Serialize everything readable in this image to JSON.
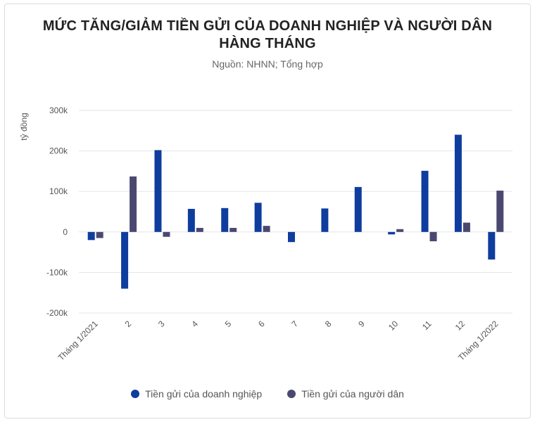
{
  "title_line1": "MỨC TĂNG/GIẢM TIỀN GỬI CỦA DOANH NGHIỆP VÀ NGƯỜI DÂN",
  "title_line2": "HÀNG THÁNG",
  "subtitle": "Nguồn: NHNN; Tổng hợp",
  "colors": {
    "business": "#0f3d9e",
    "household": "#4b4870",
    "grid": "#e3e5ea",
    "axis_text": "#555555"
  },
  "chart_data": {
    "type": "bar",
    "title": "MỨC TĂNG/GIẢM TIỀN GỬI CỦA DOANH NGHIỆP VÀ NGƯỜI DÂN HÀNG THÁNG",
    "subtitle": "Nguồn: NHNN; Tổng hợp",
    "ylabel": "tỷ đồng",
    "xlabel": "",
    "ylim": [
      -200000,
      300000
    ],
    "yticks": [
      300000,
      200000,
      100000,
      0,
      -100000,
      -200000
    ],
    "ytick_labels": [
      "300k",
      "200k",
      "100k",
      "0",
      "-100k",
      "-200k"
    ],
    "categories": [
      "Tháng 1/2021",
      "2",
      "3",
      "4",
      "5",
      "6",
      "7",
      "8",
      "9",
      "10",
      "11",
      "12",
      "Tháng 1/2022"
    ],
    "series": [
      {
        "name": "Tiền gửi của doanh nghiệp",
        "values": [
          -20000,
          -140000,
          202000,
          57000,
          59000,
          72000,
          -25000,
          58000,
          111000,
          -6000,
          151000,
          240000,
          -68000
        ]
      },
      {
        "name": "Tiền gửi của người dân",
        "values": [
          -15000,
          137000,
          -12000,
          10000,
          10000,
          15000,
          0,
          0,
          0,
          7000,
          -23000,
          23000,
          102000
        ]
      }
    ],
    "grid": true,
    "legend_position": "bottom"
  }
}
